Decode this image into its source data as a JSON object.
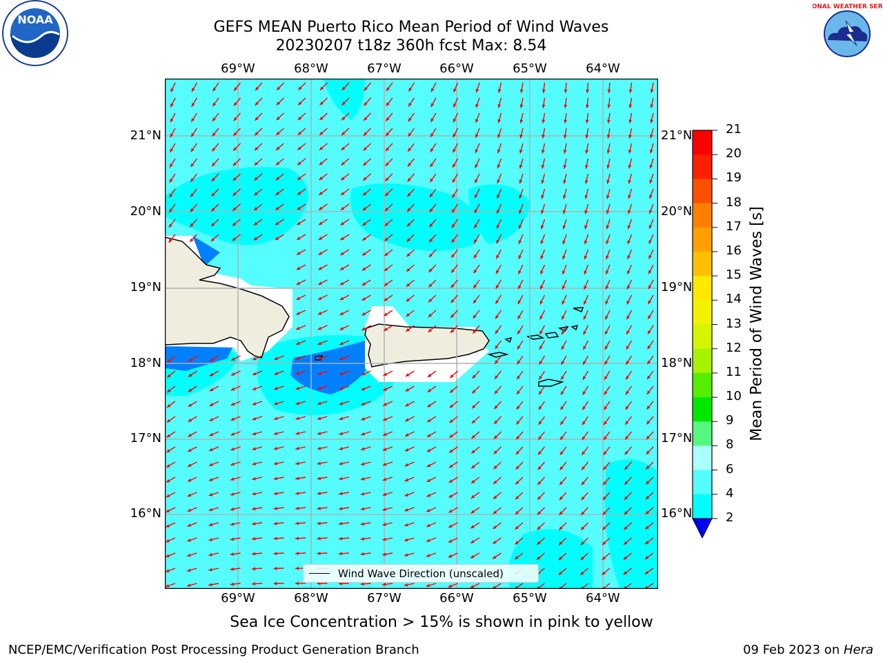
{
  "header": {
    "title_line1": "GEFS MEAN Puerto Rico Mean Period of Wind Waves",
    "title_line2": "20230207 t18z 360h fcst   Max: 8.54"
  },
  "logos": {
    "left": "NOAA",
    "right": "NATIONAL WEATHER SERVICE"
  },
  "map": {
    "lon_labels": [
      "69°W",
      "68°W",
      "67°W",
      "66°W",
      "65°W",
      "64°W"
    ],
    "lat_labels": [
      "21°N",
      "20°N",
      "19°N",
      "18°N",
      "17°N",
      "16°N"
    ],
    "ocean_color": "#55fdff",
    "land_color": "#efedde",
    "arrow_color": "#ff0000"
  },
  "legend": {
    "label": "Wind Wave Direction (unscaled)"
  },
  "colorbar": {
    "label": "Mean Period of Wind Waves [s]",
    "ticks": [
      "21",
      "20",
      "19",
      "18",
      "17",
      "16",
      "15",
      "14",
      "13",
      "12",
      "11",
      "10",
      "9",
      "8",
      "6",
      "4",
      "2"
    ],
    "colors": [
      "#0000ff",
      "#0080ff",
      "#00ffff",
      "#55fdff",
      "#aaffff",
      "#55f77f",
      "#00e800",
      "#55ee00",
      "#a7f200",
      "#d4f400",
      "#f2f200",
      "#ffe800",
      "#ffc000",
      "#ffa000",
      "#ff8000",
      "#ff5000",
      "#ff2000",
      "#ff0000"
    ]
  },
  "notes": {
    "ice": "Sea Ice Concentration > 15% is shown in pink to yellow"
  },
  "footer": {
    "left": "NCEP/EMC/Verification Post Processing Product Generation Branch",
    "date": "09 Feb 2023 on ",
    "machine": "Hera"
  }
}
